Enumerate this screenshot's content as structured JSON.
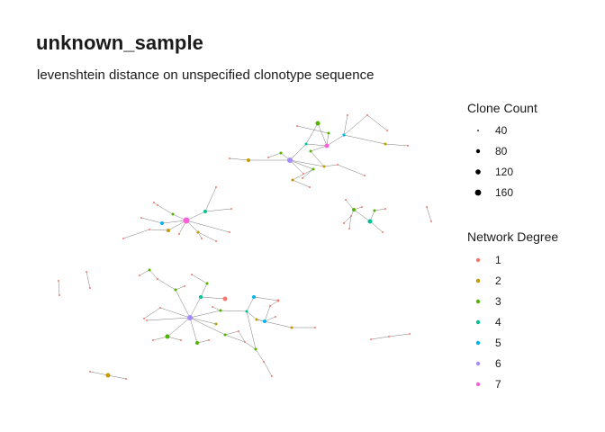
{
  "title": "unknown_sample",
  "subtitle": "levenshtein distance on unspecified clonotype sequence",
  "legends": {
    "size": {
      "title": "Clone Count",
      "items": [
        {
          "label": "40",
          "value": 40
        },
        {
          "label": "80",
          "value": 80
        },
        {
          "label": "120",
          "value": 120
        },
        {
          "label": "160",
          "value": 160
        }
      ]
    },
    "degree": {
      "title": "Network Degree",
      "items": [
        {
          "label": "1",
          "color": "#F8766D"
        },
        {
          "label": "2",
          "color": "#C49A00"
        },
        {
          "label": "3",
          "color": "#53B400"
        },
        {
          "label": "4",
          "color": "#00C094"
        },
        {
          "label": "5",
          "color": "#00B6EB"
        },
        {
          "label": "6",
          "color": "#A58AFF"
        },
        {
          "label": "7",
          "color": "#FB61D7"
        }
      ]
    }
  }
}
